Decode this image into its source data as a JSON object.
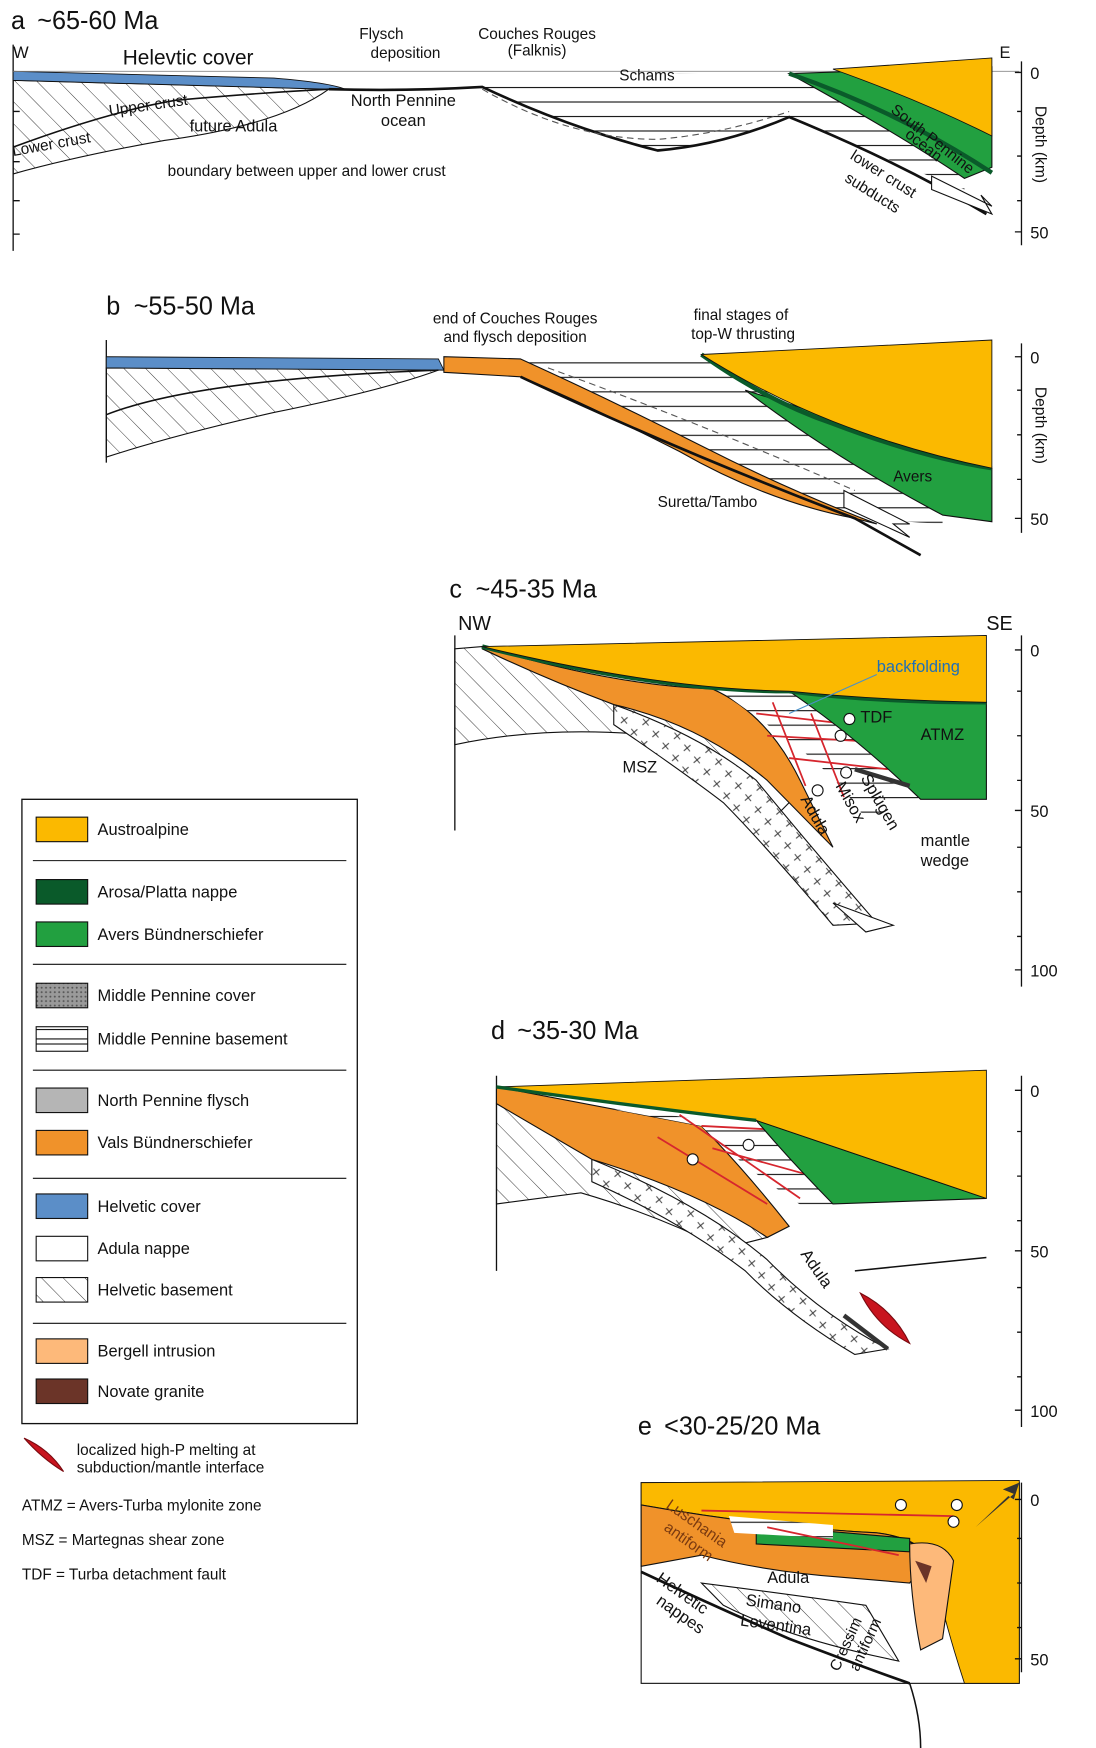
{
  "panels": {
    "a": {
      "letter": "a",
      "age": "~65-60 Ma",
      "west": "W",
      "east": "E",
      "helvetic_cover": "Helevtic cover",
      "flysch": [
        "Flysch",
        "deposition"
      ],
      "couches": [
        "Couches Rouges",
        "(Falknis)"
      ],
      "schams": "Schams",
      "upper_crust": "Upper crust",
      "lower_crust": "Lower crust",
      "future_adula": "future Adula",
      "north_pennine": [
        "North Pennine",
        "ocean"
      ],
      "boundary": "boundary between upper and lower crust",
      "south_pennine": [
        "South Pennine",
        "ocean"
      ],
      "lower_crust_subducts": [
        "lower crust",
        "subducts"
      ],
      "depth_ticks": [
        0,
        50
      ],
      "depth_label": "Depth (km)"
    },
    "b": {
      "letter": "b",
      "age": "~55-50 Ma",
      "end_couches": [
        "end of Couches Rouges",
        "and flysch deposition"
      ],
      "final_stages": [
        "final stages of",
        "top-W thrusting"
      ],
      "avers": "Avers",
      "suretta": "Suretta/Tambo",
      "depth_ticks": [
        0,
        50
      ],
      "depth_label": "Depth (km)"
    },
    "c": {
      "letter": "c",
      "age": "~45-35 Ma",
      "nw": "NW",
      "se": "SE",
      "backfolding": "backfolding",
      "tdf": "TDF",
      "atmz": "ATMZ",
      "msz": "MSZ",
      "adula": "Adula",
      "misox": "Misox",
      "splugen": "Splügen",
      "mantle_wedge": [
        "mantle",
        "wedge"
      ],
      "depth_ticks": [
        0,
        50,
        100
      ]
    },
    "d": {
      "letter": "d",
      "age": "~35-30 Ma",
      "adula": "Adula",
      "depth_ticks": [
        0,
        50,
        100
      ]
    },
    "e": {
      "letter": "e",
      "age": "<30-25/20 Ma",
      "luschania": [
        "Luschania",
        "antiform"
      ],
      "adula": "Adula",
      "simano": "Simano",
      "leventina": "Leventina",
      "helvetic_nappes": [
        "Helvetic",
        "nappes"
      ],
      "cressim": [
        "Cressim",
        "antiform"
      ],
      "depth_ticks": [
        0,
        50
      ]
    }
  },
  "legend": [
    "Austroalpine",
    "Arosa/Platta nappe",
    "Avers Bündnerschiefer",
    "Middle Pennine cover",
    "Middle Pennine basement",
    "North Pennine flysch",
    "Vals Bündnerschiefer",
    "Helvetic cover",
    "Adula nappe",
    "Helvetic basement",
    "Bergell intrusion",
    "Novate granite"
  ],
  "notes": {
    "melting": [
      "localized high-P melting at",
      "subduction/mantle interface"
    ],
    "abbreviations": [
      "ATMZ = Avers-Turba mylonite zone",
      "MSZ = Martegnas shear zone",
      "TDF = Turba detachment fault"
    ]
  }
}
